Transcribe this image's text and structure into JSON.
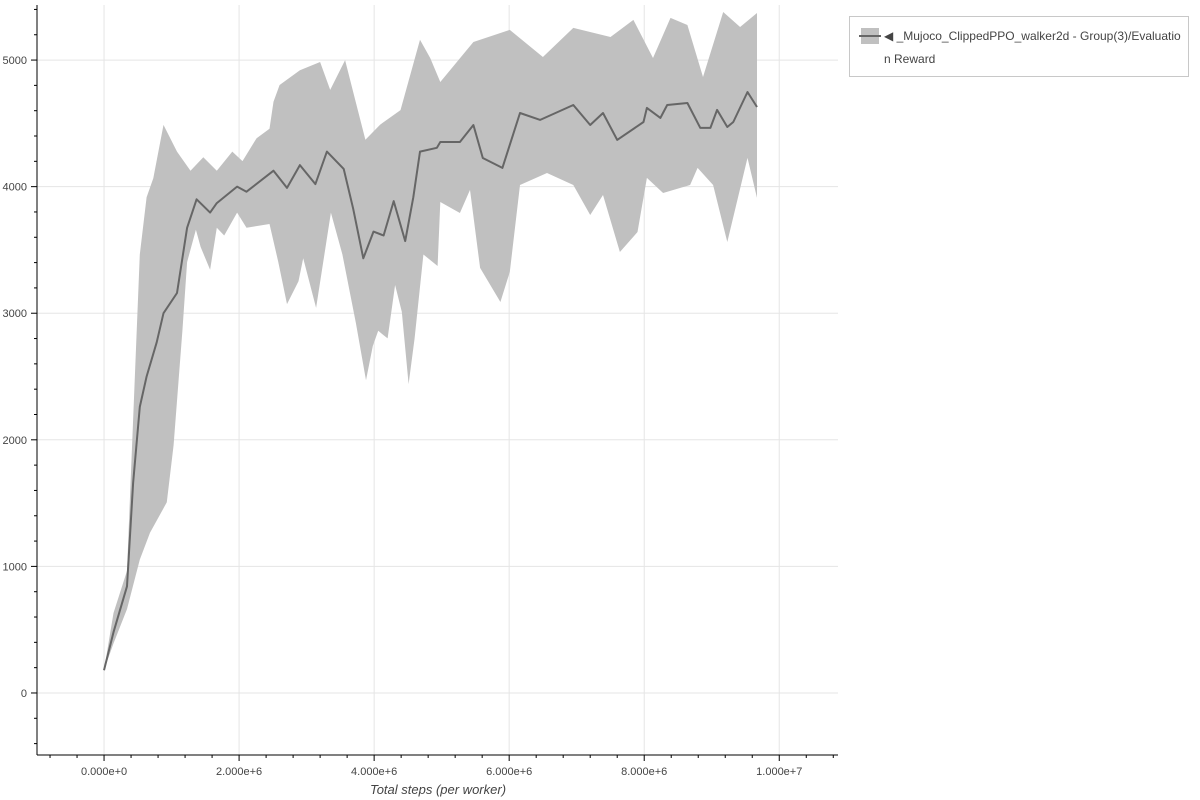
{
  "chart_data": {
    "type": "area",
    "title": "",
    "xlabel": "Total steps (per worker)",
    "ylabel": "",
    "xlim": [
      -993000,
      10870000
    ],
    "ylim": [
      -490,
      5435
    ],
    "x_ticks": [
      0,
      2000000,
      4000000,
      6000000,
      8000000,
      10000000
    ],
    "x_tick_labels": [
      "0.000e+0",
      "2.000e+6",
      "4.000e+6",
      "6.000e+6",
      "8.000e+6",
      "1.000e+7"
    ],
    "y_ticks": [
      0,
      1000,
      2000,
      3000,
      4000,
      5000
    ],
    "y_tick_labels": [
      "0",
      "1000",
      "2000",
      "3000",
      "4000",
      "5000"
    ],
    "grid": true,
    "legend_placement": "outside-top-right",
    "colors": {
      "line": "#666666",
      "band": "#c0c0c0",
      "grid": "#e5e5e5",
      "axis": "#000000"
    },
    "series": [
      {
        "name": "◀ _Mujoco_ClippedPPO_walker2d - Group(3)/Evaluation Reward",
        "mean": [
          [
            0,
            180
          ],
          [
            140000,
            480
          ],
          [
            340000,
            843
          ],
          [
            430000,
            1657
          ],
          [
            530000,
            2260
          ],
          [
            630000,
            2500
          ],
          [
            780000,
            2770
          ],
          [
            880000,
            3000
          ],
          [
            1080000,
            3160
          ],
          [
            1230000,
            3675
          ],
          [
            1370000,
            3900
          ],
          [
            1570000,
            3795
          ],
          [
            1670000,
            3870
          ],
          [
            1970000,
            4000
          ],
          [
            2110000,
            3960
          ],
          [
            2510000,
            4126
          ],
          [
            2710000,
            3990
          ],
          [
            2900000,
            4170
          ],
          [
            3130000,
            4020
          ],
          [
            3300000,
            4277
          ],
          [
            3550000,
            4140
          ],
          [
            3690000,
            3825
          ],
          [
            3840000,
            3434
          ],
          [
            3990000,
            3645
          ],
          [
            4140000,
            3614
          ],
          [
            4290000,
            3886
          ],
          [
            4460000,
            3570
          ],
          [
            4580000,
            3916
          ],
          [
            4680000,
            4277
          ],
          [
            4930000,
            4307
          ],
          [
            4980000,
            4353
          ],
          [
            5270000,
            4353
          ],
          [
            5470000,
            4487
          ],
          [
            5610000,
            4226
          ],
          [
            5900000,
            4148
          ],
          [
            6160000,
            4582
          ],
          [
            6460000,
            4527
          ],
          [
            6950000,
            4645
          ],
          [
            7200000,
            4487
          ],
          [
            7390000,
            4582
          ],
          [
            7600000,
            4369
          ],
          [
            7990000,
            4511
          ],
          [
            8040000,
            4622
          ],
          [
            8240000,
            4543
          ],
          [
            8340000,
            4645
          ],
          [
            8640000,
            4661
          ],
          [
            8830000,
            4464
          ],
          [
            8980000,
            4464
          ],
          [
            9080000,
            4606
          ],
          [
            9230000,
            4471
          ],
          [
            9320000,
            4511
          ],
          [
            9530000,
            4748
          ],
          [
            9670000,
            4629
          ]
        ],
        "upper": [
          [
            0,
            180
          ],
          [
            140000,
            632
          ],
          [
            340000,
            964
          ],
          [
            530000,
            3464
          ],
          [
            630000,
            3916
          ],
          [
            730000,
            4066
          ],
          [
            880000,
            4488
          ],
          [
            1080000,
            4277
          ],
          [
            1280000,
            4126
          ],
          [
            1470000,
            4232
          ],
          [
            1670000,
            4126
          ],
          [
            1900000,
            4277
          ],
          [
            2050000,
            4202
          ],
          [
            2260000,
            4383
          ],
          [
            2450000,
            4458
          ],
          [
            2510000,
            4670
          ],
          [
            2600000,
            4803
          ],
          [
            2900000,
            4920
          ],
          [
            3200000,
            4985
          ],
          [
            3350000,
            4764
          ],
          [
            3570000,
            5000
          ],
          [
            3720000,
            4685
          ],
          [
            3870000,
            4370
          ],
          [
            4090000,
            4490
          ],
          [
            4390000,
            4605
          ],
          [
            4680000,
            5160
          ],
          [
            4830000,
            5016
          ],
          [
            4980000,
            4827
          ],
          [
            5470000,
            5143
          ],
          [
            6010000,
            5238
          ],
          [
            6500000,
            5024
          ],
          [
            6950000,
            5254
          ],
          [
            7500000,
            5182
          ],
          [
            7840000,
            5317
          ],
          [
            8130000,
            5016
          ],
          [
            8390000,
            5333
          ],
          [
            8640000,
            5277
          ],
          [
            8870000,
            4866
          ],
          [
            9170000,
            5380
          ],
          [
            9420000,
            5261
          ],
          [
            9670000,
            5372
          ]
        ],
        "lower": [
          [
            0,
            180
          ],
          [
            140000,
            392
          ],
          [
            340000,
            663
          ],
          [
            530000,
            1054
          ],
          [
            680000,
            1265
          ],
          [
            930000,
            1506
          ],
          [
            1030000,
            1958
          ],
          [
            1160000,
            2861
          ],
          [
            1230000,
            3404
          ],
          [
            1360000,
            3660
          ],
          [
            1430000,
            3524
          ],
          [
            1570000,
            3343
          ],
          [
            1670000,
            3675
          ],
          [
            1780000,
            3614
          ],
          [
            1970000,
            3795
          ],
          [
            2110000,
            3675
          ],
          [
            2450000,
            3705
          ],
          [
            2580000,
            3404
          ],
          [
            2710000,
            3072
          ],
          [
            2880000,
            3253
          ],
          [
            2950000,
            3434
          ],
          [
            3140000,
            3042
          ],
          [
            3360000,
            3795
          ],
          [
            3530000,
            3464
          ],
          [
            3730000,
            2922
          ],
          [
            3880000,
            2470
          ],
          [
            3980000,
            2741
          ],
          [
            4060000,
            2861
          ],
          [
            4200000,
            2801
          ],
          [
            4310000,
            3223
          ],
          [
            4410000,
            3012
          ],
          [
            4510000,
            2440
          ],
          [
            4600000,
            2801
          ],
          [
            4730000,
            3464
          ],
          [
            4940000,
            3373
          ],
          [
            4980000,
            3879
          ],
          [
            5270000,
            3792
          ],
          [
            5420000,
            3974
          ],
          [
            5570000,
            3358
          ],
          [
            5870000,
            3089
          ],
          [
            6010000,
            3326
          ],
          [
            6160000,
            4013
          ],
          [
            6560000,
            4108
          ],
          [
            6950000,
            4013
          ],
          [
            7200000,
            3776
          ],
          [
            7390000,
            3934
          ],
          [
            7640000,
            3484
          ],
          [
            7900000,
            3642
          ],
          [
            8040000,
            4069
          ],
          [
            8280000,
            3950
          ],
          [
            8680000,
            4013
          ],
          [
            8790000,
            4148
          ],
          [
            9020000,
            4013
          ],
          [
            9230000,
            3563
          ],
          [
            9530000,
            4227
          ],
          [
            9670000,
            3911
          ]
        ]
      }
    ]
  },
  "legend": {
    "entry_label": "◀ _Mujoco_ClippedPPO_walker2d - Group(3)/Evaluation Reward"
  }
}
